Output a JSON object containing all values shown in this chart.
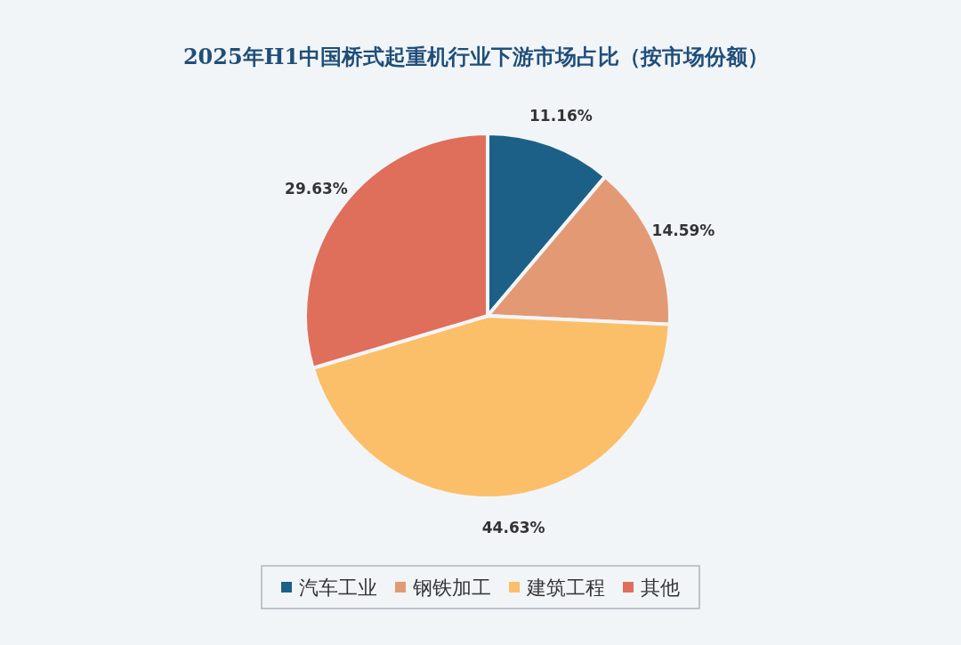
{
  "chart_data": {
    "type": "pie",
    "title": "2025年H1中国桥式起重机行业下游市场占比（按市场份额）",
    "categories": [
      "汽车工业",
      "钢铁加工",
      "建筑工程",
      "其他"
    ],
    "values": [
      11.16,
      14.59,
      44.63,
      29.63
    ],
    "colors": [
      "#1d6087",
      "#e39a74",
      "#fbbf69",
      "#df6e5b"
    ],
    "value_labels": [
      "11.16%",
      "14.59%",
      "44.63%",
      "29.63%"
    ],
    "legend": "bottom"
  }
}
